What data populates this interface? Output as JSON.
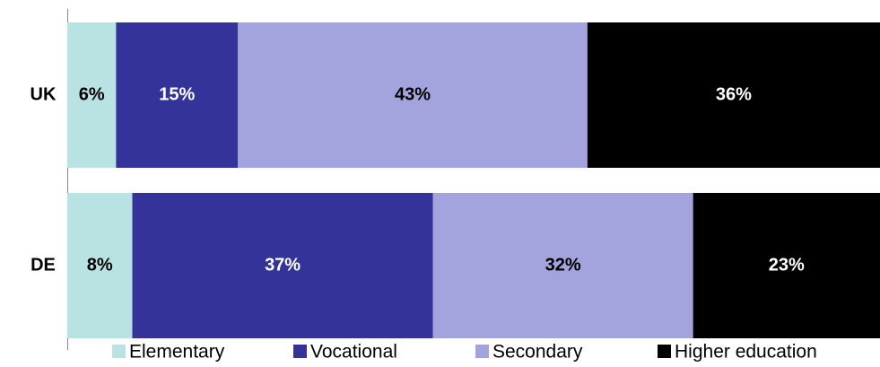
{
  "chart_data": {
    "type": "stacked_bar_horizontal",
    "categories": [
      "UK",
      "DE"
    ],
    "series": [
      {
        "name": "Elementary",
        "color": "#b9e3e3",
        "values": [
          6,
          8
        ],
        "value_labels": [
          "6%",
          "8%"
        ]
      },
      {
        "name": "Vocational",
        "color": "#333399",
        "values": [
          15,
          37
        ],
        "value_labels": [
          "15%",
          "37%"
        ]
      },
      {
        "name": "Secondary",
        "color": "#a3a3dd",
        "values": [
          43,
          32
        ],
        "value_labels": [
          "43%",
          "32%"
        ]
      },
      {
        "name": "Higher education",
        "color": "#000000",
        "values": [
          36,
          23
        ],
        "value_labels": [
          "36%",
          "23%"
        ]
      }
    ],
    "xlim": [
      0,
      100
    ],
    "legend": "bottom"
  }
}
